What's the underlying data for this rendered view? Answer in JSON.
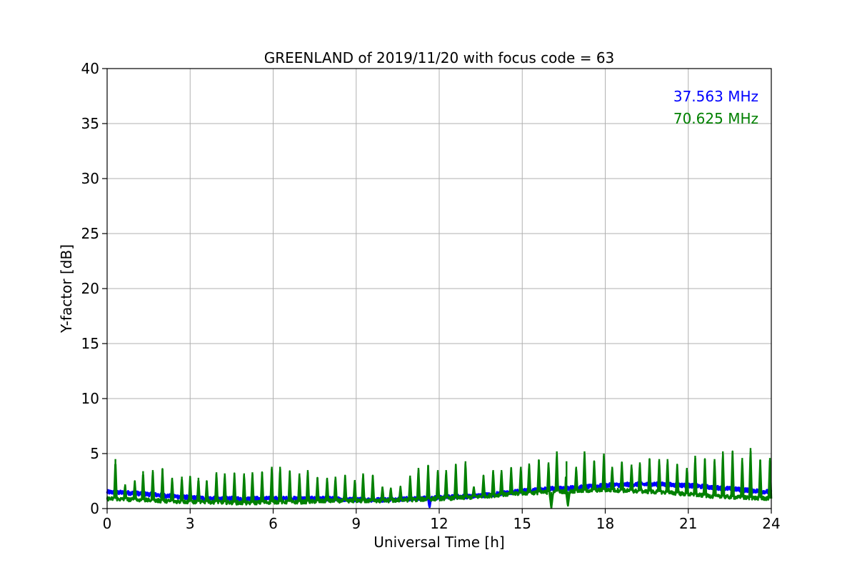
{
  "chart_data": {
    "type": "line",
    "title": "GREENLAND of 2019/11/20 with focus code = 63",
    "xlabel": "Universal Time [h]",
    "ylabel": "Y-factor [dB]",
    "xlim": [
      0,
      24
    ],
    "ylim": [
      0,
      40
    ],
    "xticks": [
      0,
      3,
      6,
      9,
      12,
      15,
      18,
      21,
      24
    ],
    "yticks": [
      0,
      5,
      10,
      15,
      20,
      25,
      30,
      35,
      40
    ],
    "grid": true,
    "legend_position": "top-right",
    "series": [
      {
        "name": "37.563 MHz",
        "color": "#0000ff",
        "baseline": [
          [
            0,
            1.5
          ],
          [
            1,
            1.4
          ],
          [
            2,
            1.2
          ],
          [
            3,
            1.0
          ],
          [
            4,
            0.9
          ],
          [
            5,
            0.9
          ],
          [
            6,
            0.9
          ],
          [
            7,
            0.9
          ],
          [
            8,
            0.9
          ],
          [
            9,
            0.8
          ],
          [
            10,
            0.8
          ],
          [
            11,
            0.9
          ],
          [
            12,
            1.0
          ],
          [
            13,
            1.1
          ],
          [
            14,
            1.3
          ],
          [
            15,
            1.6
          ],
          [
            16,
            1.8
          ],
          [
            17,
            1.9
          ],
          [
            18,
            2.1
          ],
          [
            19,
            2.2
          ],
          [
            20,
            2.2
          ],
          [
            21,
            2.1
          ],
          [
            22,
            1.9
          ],
          [
            23,
            1.7
          ],
          [
            24,
            1.5
          ]
        ],
        "spikes": [
          [
            11.65,
            0.1
          ]
        ]
      },
      {
        "name": "70.625 MHz",
        "color": "#008000",
        "baseline": [
          [
            0,
            0.9
          ],
          [
            1,
            0.8
          ],
          [
            2,
            0.7
          ],
          [
            3,
            0.6
          ],
          [
            4,
            0.6
          ],
          [
            5,
            0.5
          ],
          [
            6,
            0.6
          ],
          [
            7,
            0.6
          ],
          [
            8,
            0.7
          ],
          [
            9,
            0.7
          ],
          [
            10,
            0.7
          ],
          [
            11,
            0.8
          ],
          [
            12,
            0.9
          ],
          [
            13,
            1.0
          ],
          [
            14,
            1.2
          ],
          [
            15,
            1.4
          ],
          [
            16,
            1.5
          ],
          [
            17,
            1.6
          ],
          [
            18,
            1.7
          ],
          [
            19,
            1.6
          ],
          [
            20,
            1.5
          ],
          [
            21,
            1.3
          ],
          [
            22,
            1.1
          ],
          [
            23,
            1.0
          ],
          [
            24,
            0.9
          ]
        ],
        "spikes": [
          [
            0.3,
            4.5
          ],
          [
            0.65,
            2.2
          ],
          [
            1.0,
            2.5
          ],
          [
            1.3,
            3.4
          ],
          [
            1.65,
            3.5
          ],
          [
            2.0,
            3.6
          ],
          [
            2.35,
            2.8
          ],
          [
            2.7,
            2.9
          ],
          [
            3.0,
            2.9
          ],
          [
            3.3,
            2.8
          ],
          [
            3.6,
            2.5
          ],
          [
            3.95,
            3.3
          ],
          [
            4.25,
            3.2
          ],
          [
            4.6,
            3.2
          ],
          [
            4.95,
            3.2
          ],
          [
            5.25,
            3.3
          ],
          [
            5.6,
            3.3
          ],
          [
            5.95,
            3.8
          ],
          [
            6.25,
            3.8
          ],
          [
            6.6,
            3.4
          ],
          [
            6.95,
            3.2
          ],
          [
            7.25,
            3.5
          ],
          [
            7.6,
            2.8
          ],
          [
            7.95,
            2.8
          ],
          [
            8.25,
            2.9
          ],
          [
            8.6,
            3.0
          ],
          [
            8.95,
            2.6
          ],
          [
            9.25,
            3.2
          ],
          [
            9.6,
            3.0
          ],
          [
            9.95,
            2.0
          ],
          [
            10.25,
            1.9
          ],
          [
            10.6,
            2.0
          ],
          [
            10.95,
            3.0
          ],
          [
            11.25,
            3.7
          ],
          [
            11.6,
            3.9
          ],
          [
            11.95,
            3.5
          ],
          [
            12.25,
            3.5
          ],
          [
            12.6,
            4.0
          ],
          [
            12.95,
            4.3
          ],
          [
            13.25,
            2.0
          ],
          [
            13.6,
            3.0
          ],
          [
            13.95,
            3.5
          ],
          [
            14.25,
            3.5
          ],
          [
            14.6,
            3.7
          ],
          [
            14.95,
            3.8
          ],
          [
            15.25,
            4.1
          ],
          [
            15.6,
            4.4
          ],
          [
            15.95,
            4.2
          ],
          [
            16.25,
            5.2
          ],
          [
            16.6,
            4.3
          ],
          [
            16.95,
            3.8
          ],
          [
            17.25,
            5.2
          ],
          [
            17.6,
            4.3
          ],
          [
            17.95,
            5.0
          ],
          [
            18.25,
            3.8
          ],
          [
            18.6,
            4.2
          ],
          [
            18.95,
            4.0
          ],
          [
            19.25,
            4.2
          ],
          [
            19.6,
            4.5
          ],
          [
            19.95,
            4.5
          ],
          [
            20.25,
            4.5
          ],
          [
            20.6,
            4.0
          ],
          [
            20.95,
            3.7
          ],
          [
            21.25,
            4.8
          ],
          [
            21.6,
            4.5
          ],
          [
            21.95,
            4.5
          ],
          [
            22.25,
            5.2
          ],
          [
            22.6,
            5.2
          ],
          [
            22.95,
            4.6
          ],
          [
            23.25,
            5.5
          ],
          [
            23.6,
            4.4
          ],
          [
            23.95,
            4.6
          ]
        ],
        "dips": [
          [
            16.05,
            0.0
          ],
          [
            16.65,
            0.2
          ]
        ]
      }
    ]
  }
}
